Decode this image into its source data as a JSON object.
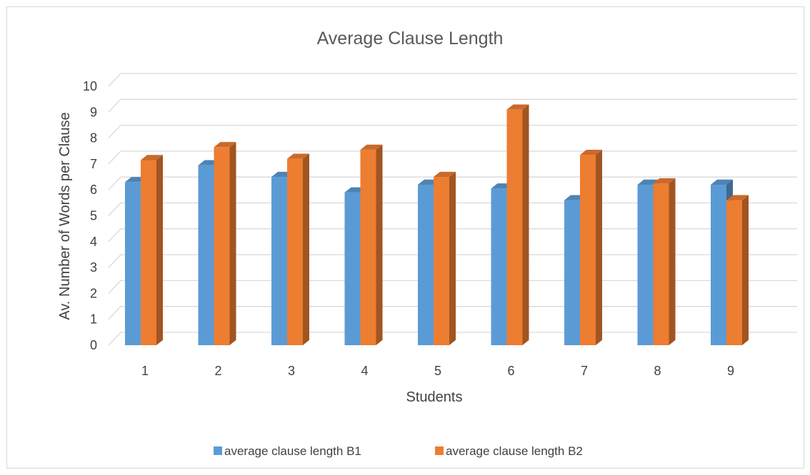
{
  "chart_data": {
    "type": "bar",
    "title": "Average Clause Length",
    "xlabel": "Students",
    "ylabel": "Av. Number of Words per Clause",
    "categories": [
      "1",
      "2",
      "3",
      "4",
      "5",
      "6",
      "7",
      "8",
      "9"
    ],
    "series": [
      {
        "name": "average clause length B1",
        "color": "#5b9bd5",
        "values": [
          6.3,
          6.95,
          6.5,
          5.9,
          6.2,
          6.05,
          5.6,
          6.2,
          6.2
        ]
      },
      {
        "name": "average clause length B2",
        "color": "#ed7d31",
        "values": [
          7.15,
          7.65,
          7.2,
          7.55,
          6.5,
          9.1,
          7.35,
          6.25,
          5.6
        ]
      }
    ],
    "ylim": [
      0,
      10
    ],
    "yticks": [
      "0",
      "1",
      "2",
      "3",
      "4",
      "5",
      "6",
      "7",
      "8",
      "9",
      "10"
    ],
    "grid": true,
    "legend": "bottom",
    "style": "3d-column"
  }
}
